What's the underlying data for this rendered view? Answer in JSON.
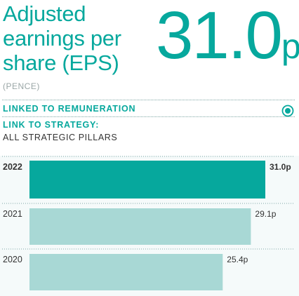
{
  "title": "Adjusted earnings per share (EPS)",
  "headline": {
    "value": "31.0",
    "unit": "p"
  },
  "unit_label": "(PENCE)",
  "remuneration": {
    "label": "LINKED TO REMUNERATION",
    "icon": "target-icon"
  },
  "strategy": {
    "heading": "LINK TO STRATEGY:",
    "text": "ALL STRATEGIC PILLARS"
  },
  "colors": {
    "accent": "#06a89d",
    "bar_current": "#06a89d",
    "bar_previous": "#a8d8d5",
    "dotted_line": "#7fa7a5"
  },
  "chart_data": {
    "type": "bar",
    "orientation": "horizontal",
    "categories": [
      "2022",
      "2021",
      "2020"
    ],
    "values": [
      31.0,
      29.1,
      25.4
    ],
    "value_labels": [
      "31.0p",
      "29.1p",
      "25.4p"
    ],
    "highlight": "2022",
    "xlim": [
      0,
      31.0
    ]
  }
}
